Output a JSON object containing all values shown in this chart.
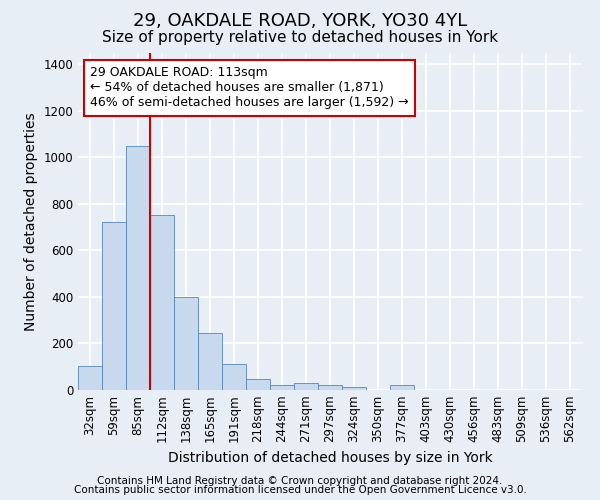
{
  "title1": "29, OAKDALE ROAD, YORK, YO30 4YL",
  "title2": "Size of property relative to detached houses in York",
  "xlabel": "Distribution of detached houses by size in York",
  "ylabel": "Number of detached properties",
  "categories": [
    "32sqm",
    "59sqm",
    "85sqm",
    "112sqm",
    "138sqm",
    "165sqm",
    "191sqm",
    "218sqm",
    "244sqm",
    "271sqm",
    "297sqm",
    "324sqm",
    "350sqm",
    "377sqm",
    "403sqm",
    "430sqm",
    "456sqm",
    "483sqm",
    "509sqm",
    "536sqm",
    "562sqm"
  ],
  "values": [
    105,
    720,
    1050,
    750,
    400,
    245,
    110,
    48,
    20,
    28,
    22,
    13,
    0,
    20,
    0,
    0,
    0,
    0,
    0,
    0,
    0
  ],
  "bar_color": "#c9d9ed",
  "bar_edge_color": "#5588bb",
  "vline_color": "#cc0000",
  "vline_x_idx": 3,
  "annotation_text_line1": "29 OAKDALE ROAD: 113sqm",
  "annotation_text_line2": "← 54% of detached houses are smaller (1,871)",
  "annotation_text_line3": "46% of semi-detached houses are larger (1,592) →",
  "annotation_box_color": "#cc0000",
  "annotation_fill_color": "#ffffff",
  "ylim": [
    0,
    1450
  ],
  "yticks": [
    0,
    200,
    400,
    600,
    800,
    1000,
    1200,
    1400
  ],
  "footer1": "Contains HM Land Registry data © Crown copyright and database right 2024.",
  "footer2": "Contains public sector information licensed under the Open Government Licence v3.0.",
  "background_color": "#e8eef5",
  "plot_bg_color": "#e8eef5",
  "grid_color": "#ffffff",
  "title1_fontsize": 13,
  "title2_fontsize": 11,
  "axis_label_fontsize": 10,
  "tick_fontsize": 8.5,
  "annot_fontsize": 9,
  "footer_fontsize": 7.5
}
